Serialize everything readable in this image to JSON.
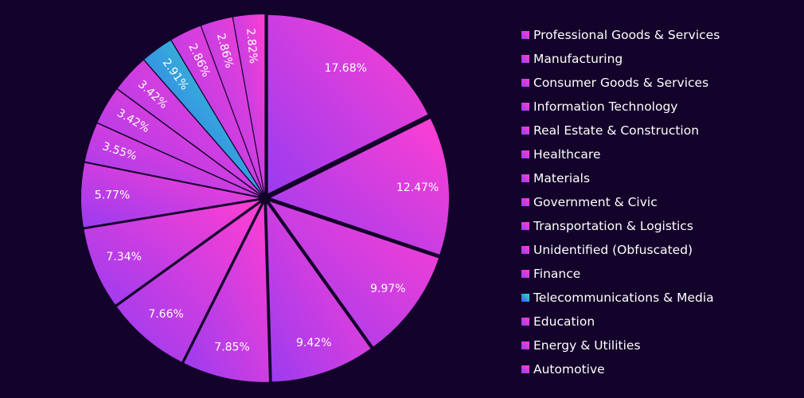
{
  "chart_data": {
    "type": "pie",
    "title": "",
    "legend_position": "right",
    "slices": [
      {
        "label": "Professional Goods & Services",
        "value": 17.68,
        "display": "17.68%"
      },
      {
        "label": "Manufacturing",
        "value": 12.47,
        "display": "12.47%"
      },
      {
        "label": "Consumer Goods & Services",
        "value": 9.97,
        "display": "9.97%"
      },
      {
        "label": "Information Technology",
        "value": 9.42,
        "display": "9.42%"
      },
      {
        "label": "Real Estate & Construction",
        "value": 7.85,
        "display": "7.85%"
      },
      {
        "label": "Healthcare",
        "value": 7.66,
        "display": "7.66%"
      },
      {
        "label": "Materials",
        "value": 7.34,
        "display": "7.34%"
      },
      {
        "label": "Government & Civic",
        "value": 5.77,
        "display": "5.77%"
      },
      {
        "label": "Transportation & Logistics",
        "value": 3.55,
        "display": "3.55%"
      },
      {
        "label": "Unidentified (Obfuscated)",
        "value": 3.42,
        "display": "3.42%"
      },
      {
        "label": "Finance",
        "value": 3.42,
        "display": "3.42%"
      },
      {
        "label": "Telecommunications & Media",
        "value": 2.91,
        "display": "2.91%"
      },
      {
        "label": "Education",
        "value": 2.86,
        "display": "2.86%"
      },
      {
        "label": "Energy & Utilities",
        "value": 2.86,
        "display": "2.86%"
      },
      {
        "label": "Automotive",
        "value": 2.82,
        "display": "2.82%"
      }
    ],
    "colors": {
      "background": "#13022a",
      "default_gradient": [
        "#ff3fd2",
        "#9a3cf0"
      ],
      "highlight_gradient": [
        "#2fe0c0",
        "#3d5bff"
      ],
      "highlight_slice": "Telecommunications & Media"
    }
  }
}
